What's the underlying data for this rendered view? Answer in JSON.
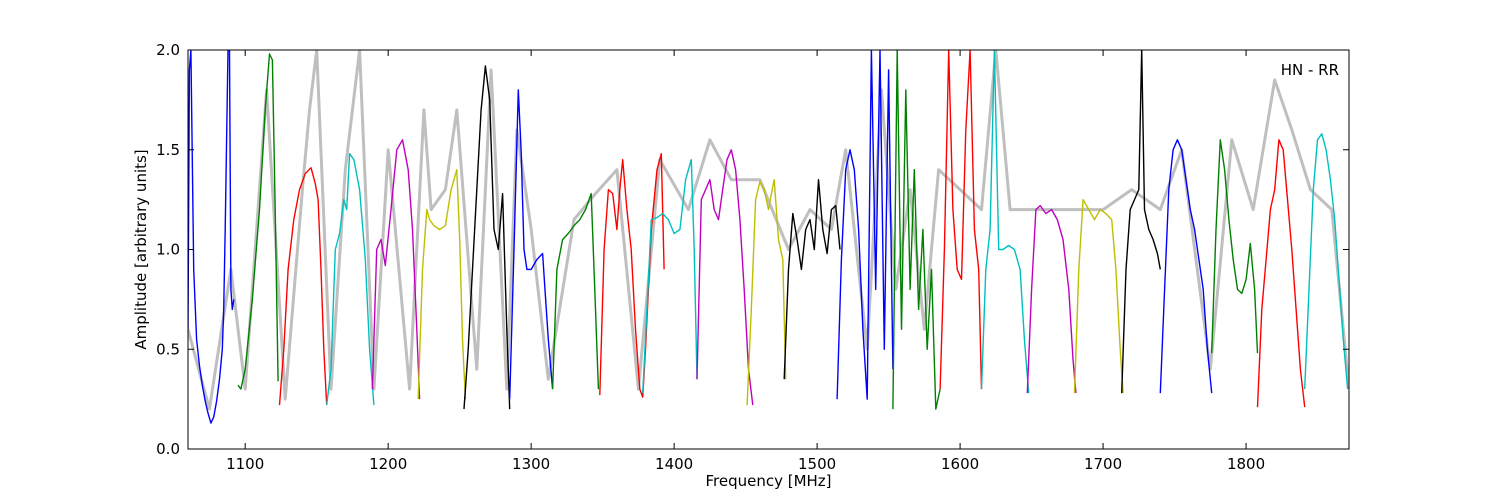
{
  "chart_data": {
    "type": "line",
    "title": "",
    "annotation": "HN - RR",
    "xlabel": "Frequency [MHz]",
    "ylabel": "Amplitude [arbitrary units]",
    "xlim": [
      1060,
      1872
    ],
    "ylim": [
      0,
      2.0
    ],
    "x_ticks": [
      1100,
      1200,
      1300,
      1400,
      1500,
      1600,
      1700,
      1800
    ],
    "x_tick_labels": [
      "1100",
      "1200",
      "1300",
      "1400",
      "1500",
      "1600",
      "1700",
      "1800"
    ],
    "y_ticks": [
      0.0,
      0.5,
      1.0,
      1.5,
      2.0
    ],
    "y_tick_labels": [
      "0.0",
      "0.5",
      "1.0",
      "1.5",
      "2.0"
    ],
    "grid": false,
    "background_series": {
      "name": "",
      "color": "#bfbfbf",
      "x": [
        1060,
        1075,
        1090,
        1100,
        1115,
        1128,
        1140,
        1145,
        1150,
        1160,
        1170,
        1180,
        1190,
        1200,
        1215,
        1225,
        1230,
        1240,
        1248,
        1262,
        1272,
        1283,
        1290,
        1300,
        1312,
        1330,
        1345,
        1360,
        1375,
        1390,
        1410,
        1425,
        1440,
        1460,
        1480,
        1495,
        1510,
        1520,
        1535,
        1545,
        1555,
        1565,
        1575,
        1585,
        1600,
        1615,
        1625,
        1635,
        1650,
        1665,
        1680,
        1700,
        1720,
        1740,
        1755,
        1775,
        1790,
        1805,
        1820,
        1832,
        1845,
        1860,
        1872
      ],
      "values": [
        0.6,
        0.2,
        0.9,
        0.3,
        1.8,
        0.25,
        1.3,
        1.7,
        2.0,
        0.3,
        1.4,
        2.0,
        0.3,
        1.5,
        0.3,
        1.7,
        1.2,
        1.3,
        1.7,
        0.4,
        1.9,
        0.3,
        1.6,
        1.1,
        0.35,
        1.15,
        1.28,
        1.4,
        0.3,
        1.45,
        1.2,
        1.55,
        1.35,
        1.35,
        1.0,
        1.2,
        1.1,
        1.5,
        0.5,
        1.8,
        0.8,
        1.3,
        0.6,
        1.4,
        1.3,
        1.2,
        2.0,
        1.2,
        1.2,
        1.2,
        1.2,
        1.2,
        1.3,
        1.2,
        1.5,
        0.4,
        1.55,
        1.2,
        1.85,
        1.6,
        1.3,
        1.2,
        0.3
      ]
    },
    "series": [
      {
        "color": "#0000ff",
        "x": [
          1060,
          1061,
          1062,
          1064,
          1066,
          1068,
          1070,
          1072,
          1074,
          1076,
          1078,
          1080,
          1082,
          1084,
          1085,
          1086,
          1088,
          1089,
          1090,
          1091,
          1092
        ],
        "values": [
          0.6,
          1.9,
          2.0,
          0.9,
          0.55,
          0.42,
          0.32,
          0.24,
          0.18,
          0.13,
          0.16,
          0.24,
          0.35,
          0.5,
          0.7,
          1.1,
          2.0,
          2.0,
          0.8,
          0.7,
          0.75
        ]
      },
      {
        "color": "#008000",
        "x": [
          1095,
          1097,
          1100,
          1105,
          1110,
          1114,
          1117,
          1119,
          1121,
          1123
        ],
        "values": [
          0.32,
          0.3,
          0.4,
          0.75,
          1.2,
          1.7,
          1.98,
          1.95,
          1.2,
          0.34
        ]
      },
      {
        "color": "#ff0000",
        "x": [
          1124,
          1127,
          1130,
          1134,
          1138,
          1142,
          1146,
          1149,
          1151,
          1153,
          1155,
          1157
        ],
        "values": [
          0.22,
          0.5,
          0.9,
          1.15,
          1.3,
          1.38,
          1.41,
          1.33,
          1.25,
          0.9,
          0.5,
          0.22
        ]
      },
      {
        "color": "#00bfbf",
        "x": [
          1157,
          1160,
          1163,
          1166,
          1169,
          1171,
          1173,
          1176,
          1180,
          1184,
          1187,
          1190
        ],
        "values": [
          0.22,
          0.4,
          1.0,
          1.08,
          1.25,
          1.2,
          1.48,
          1.45,
          1.3,
          0.95,
          0.5,
          0.22
        ]
      },
      {
        "color": "#bf00bf",
        "x": [
          1189,
          1192,
          1195,
          1198,
          1202,
          1206,
          1210,
          1214,
          1217,
          1220,
          1222
        ],
        "values": [
          0.3,
          1.0,
          1.05,
          0.92,
          1.2,
          1.5,
          1.55,
          1.4,
          1.1,
          0.6,
          0.25
        ]
      },
      {
        "color": "#bfbf00",
        "x": [
          1221,
          1224,
          1227,
          1229,
          1232,
          1236,
          1240,
          1244,
          1248,
          1250,
          1252,
          1254
        ],
        "values": [
          0.25,
          0.9,
          1.2,
          1.15,
          1.12,
          1.1,
          1.12,
          1.3,
          1.4,
          1.05,
          0.55,
          0.25
        ]
      },
      {
        "color": "#000000",
        "x": [
          1253,
          1256,
          1259,
          1262,
          1265,
          1268,
          1271,
          1274,
          1277,
          1280,
          1283,
          1285
        ],
        "values": [
          0.2,
          0.5,
          0.9,
          1.3,
          1.7,
          1.92,
          1.75,
          1.1,
          1.0,
          1.28,
          0.6,
          0.2
        ]
      },
      {
        "color": "#0000ff",
        "x": [
          1285,
          1288,
          1291,
          1293,
          1295,
          1297,
          1300,
          1304,
          1308,
          1312,
          1315
        ],
        "values": [
          0.25,
          1.0,
          1.8,
          1.5,
          1.0,
          0.9,
          0.9,
          0.95,
          0.98,
          0.55,
          0.3
        ]
      },
      {
        "color": "#008000",
        "x": [
          1315,
          1318,
          1322,
          1326,
          1330,
          1334,
          1338,
          1342,
          1345,
          1347
        ],
        "values": [
          0.3,
          0.9,
          1.05,
          1.08,
          1.12,
          1.15,
          1.2,
          1.28,
          0.7,
          0.3
        ]
      },
      {
        "color": "#ff0000",
        "x": [
          1348,
          1351,
          1354,
          1357,
          1360,
          1362,
          1364,
          1367,
          1370,
          1373,
          1376,
          1378,
          1380,
          1384,
          1388,
          1391,
          1393
        ],
        "values": [
          0.27,
          1.0,
          1.3,
          1.28,
          1.1,
          1.3,
          1.45,
          1.2,
          1.0,
          0.6,
          0.3,
          0.26,
          0.5,
          1.1,
          1.4,
          1.48,
          0.9
        ]
      },
      {
        "color": "#00bfbf",
        "x": [
          1378,
          1381,
          1384,
          1388,
          1392,
          1396,
          1400,
          1404,
          1408,
          1412,
          1414,
          1416
        ],
        "values": [
          0.28,
          0.7,
          1.15,
          1.16,
          1.18,
          1.15,
          1.08,
          1.1,
          1.35,
          1.45,
          1.0,
          0.35
        ]
      },
      {
        "color": "#bf00bf",
        "x": [
          1416,
          1419,
          1422,
          1425,
          1428,
          1431,
          1434,
          1437,
          1440,
          1443,
          1446,
          1449,
          1452,
          1455
        ],
        "values": [
          0.35,
          1.25,
          1.3,
          1.35,
          1.2,
          1.15,
          1.3,
          1.45,
          1.5,
          1.4,
          1.15,
          0.8,
          0.4,
          0.22
        ]
      },
      {
        "color": "#bfbf00",
        "x": [
          1451,
          1454,
          1457,
          1460,
          1463,
          1466,
          1468,
          1470,
          1473,
          1476,
          1478
        ],
        "values": [
          0.22,
          0.7,
          1.25,
          1.34,
          1.3,
          1.2,
          1.28,
          1.35,
          1.05,
          0.95,
          0.35
        ]
      },
      {
        "color": "#000000",
        "x": [
          1477,
          1480,
          1483,
          1486,
          1489,
          1492,
          1495,
          1498,
          1501,
          1504,
          1507,
          1510,
          1513,
          1516
        ],
        "values": [
          0.35,
          0.9,
          1.18,
          1.05,
          0.9,
          1.1,
          1.15,
          1.0,
          1.35,
          1.1,
          0.98,
          1.2,
          1.22,
          1.0
        ]
      },
      {
        "color": "#0000ff",
        "x": [
          1514,
          1517,
          1520,
          1523,
          1526,
          1529,
          1532,
          1535,
          1538,
          1541,
          1544,
          1547,
          1550,
          1553
        ],
        "values": [
          0.25,
          0.95,
          1.4,
          1.5,
          1.4,
          1.1,
          0.6,
          0.25,
          2.0,
          0.8,
          2.0,
          0.5,
          1.9,
          0.4
        ]
      },
      {
        "color": "#008000",
        "x": [
          1553,
          1556,
          1559,
          1562,
          1565,
          1568,
          1571,
          1574,
          1577,
          1580,
          1583,
          1586
        ],
        "values": [
          0.2,
          2.0,
          0.6,
          1.8,
          0.8,
          1.4,
          0.7,
          1.1,
          0.5,
          0.9,
          0.2,
          0.3
        ]
      },
      {
        "color": "#ff0000",
        "x": [
          1586,
          1589,
          1592,
          1595,
          1598,
          1601,
          1604,
          1607,
          1610,
          1613,
          1615
        ],
        "values": [
          0.3,
          1.0,
          2.0,
          1.2,
          0.9,
          0.85,
          1.6,
          2.0,
          1.1,
          0.9,
          0.3
        ]
      },
      {
        "color": "#00bfbf",
        "x": [
          1615,
          1618,
          1621,
          1624,
          1627,
          1630,
          1634,
          1638,
          1642,
          1645,
          1648
        ],
        "values": [
          0.3,
          0.9,
          1.1,
          2.0,
          1.0,
          1.0,
          1.02,
          1.0,
          0.9,
          0.55,
          0.28
        ]
      },
      {
        "color": "#bf00bf",
        "x": [
          1647,
          1650,
          1653,
          1656,
          1660,
          1664,
          1668,
          1672,
          1676,
          1679,
          1681
        ],
        "values": [
          0.28,
          0.8,
          1.2,
          1.22,
          1.18,
          1.2,
          1.15,
          1.05,
          0.8,
          0.45,
          0.28
        ]
      },
      {
        "color": "#bfbf00",
        "x": [
          1680,
          1683,
          1686,
          1690,
          1694,
          1698,
          1702,
          1706,
          1709,
          1712,
          1714
        ],
        "values": [
          0.28,
          0.9,
          1.25,
          1.2,
          1.15,
          1.2,
          1.18,
          1.15,
          0.9,
          0.5,
          0.28
        ]
      },
      {
        "color": "#000000",
        "x": [
          1713,
          1716,
          1719,
          1722,
          1725,
          1727,
          1729,
          1732,
          1735,
          1738,
          1740
        ],
        "values": [
          0.28,
          0.9,
          1.2,
          1.25,
          1.3,
          2.0,
          1.2,
          1.1,
          1.05,
          0.98,
          0.9
        ]
      },
      {
        "color": "#0000ff",
        "x": [
          1740,
          1743,
          1746,
          1749,
          1752,
          1755,
          1758,
          1761,
          1764,
          1767,
          1770,
          1773,
          1776
        ],
        "values": [
          0.28,
          0.8,
          1.3,
          1.5,
          1.55,
          1.5,
          1.35,
          1.2,
          1.1,
          0.95,
          0.8,
          0.5,
          0.28
        ]
      },
      {
        "color": "#008000",
        "x": [
          1776,
          1779,
          1782,
          1785,
          1788,
          1791,
          1794,
          1797,
          1800,
          1803,
          1806,
          1808
        ],
        "values": [
          0.48,
          1.1,
          1.55,
          1.4,
          1.15,
          0.95,
          0.8,
          0.78,
          0.85,
          1.03,
          0.8,
          0.48
        ]
      },
      {
        "color": "#ff0000",
        "x": [
          1808,
          1811,
          1814,
          1817,
          1820,
          1823,
          1826,
          1829,
          1832,
          1835,
          1838,
          1841
        ],
        "values": [
          0.21,
          0.7,
          0.95,
          1.2,
          1.3,
          1.55,
          1.5,
          1.25,
          1.0,
          0.7,
          0.4,
          0.21
        ]
      },
      {
        "color": "#00bfbf",
        "x": [
          1841,
          1844,
          1847,
          1850,
          1853,
          1856,
          1859,
          1862,
          1865,
          1868,
          1871
        ],
        "values": [
          0.3,
          0.8,
          1.3,
          1.55,
          1.58,
          1.5,
          1.35,
          1.15,
          0.85,
          0.55,
          0.3
        ]
      }
    ]
  }
}
